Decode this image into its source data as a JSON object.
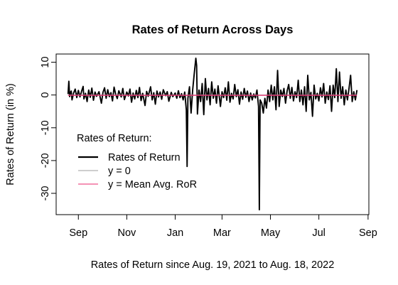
{
  "chart_data": {
    "type": "line",
    "title": "Rates of Return Across Days",
    "xlabel": "Rates of Return since Aug. 19, 2021 to Aug. 18, 2022",
    "ylabel": "Rates of Return (in %)",
    "x_range": [
      "2021-08-19",
      "2022-08-18"
    ],
    "xlim": [
      "2021-08-04",
      "2022-09-02"
    ],
    "ylim": [
      -36.5,
      12.5
    ],
    "x_ticks": [
      {
        "label": "Sep",
        "date": "2021-09-01"
      },
      {
        "label": "Nov",
        "date": "2021-11-01"
      },
      {
        "label": "Jan",
        "date": "2022-01-01"
      },
      {
        "label": "Mar",
        "date": "2022-03-01"
      },
      {
        "label": "May",
        "date": "2022-05-01"
      },
      {
        "label": "Jul",
        "date": "2022-07-01"
      },
      {
        "label": "Sep",
        "date": "2022-09-01"
      }
    ],
    "y_ticks": [
      10,
      0,
      -10,
      -20,
      -30
    ],
    "legend": {
      "title": "Rates of Return:",
      "position": "bottom-left",
      "entries": [
        {
          "label": "Rates of Return",
          "color": "#000000"
        },
        {
          "label": "y = 0",
          "color": "#9e9e9e"
        },
        {
          "label": "y = Mean Avg. RoR",
          "color": "#e8276b"
        }
      ]
    },
    "mean_ror": -0.1,
    "series": [
      {
        "name": "Rates of Return",
        "color": "#000000",
        "points": [
          [
            "2021-08-19",
            0.3
          ],
          [
            "2021-08-20",
            4.2
          ],
          [
            "2021-08-21",
            -0.5
          ],
          [
            "2021-08-22",
            0.8
          ],
          [
            "2021-08-23",
            1.2
          ],
          [
            "2021-08-24",
            -1.5
          ],
          [
            "2021-08-26",
            0.6
          ],
          [
            "2021-08-28",
            1.8
          ],
          [
            "2021-08-30",
            -0.8
          ],
          [
            "2021-09-01",
            1.4
          ],
          [
            "2021-09-03",
            -0.6
          ],
          [
            "2021-09-05",
            1.1
          ],
          [
            "2021-09-07",
            2.6
          ],
          [
            "2021-09-08",
            -1.2
          ],
          [
            "2021-09-10",
            0.5
          ],
          [
            "2021-09-12",
            -2.0
          ],
          [
            "2021-09-14",
            1.5
          ],
          [
            "2021-09-16",
            -0.7
          ],
          [
            "2021-09-18",
            2.1
          ],
          [
            "2021-09-20",
            -1.6
          ],
          [
            "2021-09-22",
            0.9
          ],
          [
            "2021-09-24",
            -0.4
          ],
          [
            "2021-09-27",
            1.0
          ],
          [
            "2021-09-30",
            -2.5
          ],
          [
            "2021-10-02",
            0.8
          ],
          [
            "2021-10-04",
            2.2
          ],
          [
            "2021-10-06",
            -1.0
          ],
          [
            "2021-10-08",
            1.6
          ],
          [
            "2021-10-10",
            -0.5
          ],
          [
            "2021-10-12",
            0.7
          ],
          [
            "2021-10-14",
            -1.8
          ],
          [
            "2021-10-16",
            2.4
          ],
          [
            "2021-10-18",
            0.2
          ],
          [
            "2021-10-20",
            -1.1
          ],
          [
            "2021-10-22",
            1.3
          ],
          [
            "2021-10-25",
            -0.6
          ],
          [
            "2021-10-27",
            2.0
          ],
          [
            "2021-10-29",
            -1.4
          ],
          [
            "2021-11-01",
            0.9
          ],
          [
            "2021-11-03",
            -0.3
          ],
          [
            "2021-11-05",
            1.8
          ],
          [
            "2021-11-07",
            -2.2
          ],
          [
            "2021-11-09",
            0.6
          ],
          [
            "2021-11-11",
            -1.2
          ],
          [
            "2021-11-13",
            1.4
          ],
          [
            "2021-11-15",
            -0.8
          ],
          [
            "2021-11-17",
            2.3
          ],
          [
            "2021-11-19",
            -1.7
          ],
          [
            "2021-11-21",
            0.5
          ],
          [
            "2021-11-24",
            -3.2
          ],
          [
            "2021-11-26",
            1.1
          ],
          [
            "2021-11-28",
            -0.4
          ],
          [
            "2021-12-01",
            2.5
          ],
          [
            "2021-12-03",
            -1.5
          ],
          [
            "2021-12-05",
            0.7
          ],
          [
            "2021-12-07",
            -2.8
          ],
          [
            "2021-12-09",
            1.2
          ],
          [
            "2021-12-11",
            -0.6
          ],
          [
            "2021-12-13",
            0.9
          ],
          [
            "2021-12-15",
            -1.3
          ],
          [
            "2021-12-17",
            1.6
          ],
          [
            "2021-12-20",
            -0.2
          ],
          [
            "2021-12-22",
            1.0
          ],
          [
            "2021-12-24",
            -1.9
          ],
          [
            "2021-12-27",
            0.8
          ],
          [
            "2021-12-29",
            -0.5
          ],
          [
            "2022-01-01",
            0.6
          ],
          [
            "2022-01-03",
            -1.0
          ],
          [
            "2022-01-05",
            1.3
          ],
          [
            "2022-01-07",
            -0.8
          ],
          [
            "2022-01-09",
            0.4
          ],
          [
            "2022-01-11",
            -1.5
          ],
          [
            "2022-01-13",
            0.9
          ],
          [
            "2022-01-15",
            -4.5
          ],
          [
            "2022-01-16",
            -21.8
          ],
          [
            "2022-01-17",
            -1.0
          ],
          [
            "2022-01-19",
            2.5
          ],
          [
            "2022-01-21",
            -5.5
          ],
          [
            "2022-01-23",
            1.5
          ],
          [
            "2022-01-25",
            6.5
          ],
          [
            "2022-01-27",
            11.2
          ],
          [
            "2022-01-28",
            9.0
          ],
          [
            "2022-01-29",
            -5.8
          ],
          [
            "2022-01-31",
            1.5
          ],
          [
            "2022-02-02",
            -2.0
          ],
          [
            "2022-02-04",
            3.5
          ],
          [
            "2022-02-06",
            -6.0
          ],
          [
            "2022-02-08",
            5.0
          ],
          [
            "2022-02-10",
            -1.5
          ],
          [
            "2022-02-12",
            2.0
          ],
          [
            "2022-02-14",
            -3.0
          ],
          [
            "2022-02-16",
            4.0
          ],
          [
            "2022-02-18",
            -1.0
          ],
          [
            "2022-02-20",
            1.8
          ],
          [
            "2022-02-22",
            -2.5
          ],
          [
            "2022-02-24",
            2.8
          ],
          [
            "2022-02-27",
            -3.5
          ],
          [
            "2022-03-01",
            1.0
          ],
          [
            "2022-03-03",
            -0.8
          ],
          [
            "2022-03-05",
            2.2
          ],
          [
            "2022-03-07",
            -1.6
          ],
          [
            "2022-03-09",
            4.0
          ],
          [
            "2022-03-11",
            -2.2
          ],
          [
            "2022-03-13",
            0.5
          ],
          [
            "2022-03-15",
            -1.2
          ],
          [
            "2022-03-17",
            3.2
          ],
          [
            "2022-03-19",
            -0.5
          ],
          [
            "2022-03-21",
            1.6
          ],
          [
            "2022-03-23",
            -2.8
          ],
          [
            "2022-03-25",
            0.9
          ],
          [
            "2022-03-27",
            -1.3
          ],
          [
            "2022-03-29",
            2.0
          ],
          [
            "2022-03-31",
            -0.7
          ],
          [
            "2022-04-02",
            1.2
          ],
          [
            "2022-04-04",
            -2.0
          ],
          [
            "2022-04-06",
            0.6
          ],
          [
            "2022-04-08",
            -1.5
          ],
          [
            "2022-04-10",
            0.3
          ],
          [
            "2022-04-12",
            -0.9
          ],
          [
            "2022-04-14",
            1.5
          ],
          [
            "2022-04-16",
            -3.5
          ],
          [
            "2022-04-17",
            -35.0
          ],
          [
            "2022-04-18",
            -1.5
          ],
          [
            "2022-04-20",
            -2.5
          ],
          [
            "2022-04-22",
            -5.5
          ],
          [
            "2022-04-24",
            -1.0
          ],
          [
            "2022-04-26",
            -4.0
          ],
          [
            "2022-04-28",
            1.5
          ],
          [
            "2022-04-30",
            -2.0
          ],
          [
            "2022-05-02",
            3.0
          ],
          [
            "2022-05-04",
            -1.5
          ],
          [
            "2022-05-06",
            2.5
          ],
          [
            "2022-05-08",
            -4.5
          ],
          [
            "2022-05-10",
            7.5
          ],
          [
            "2022-05-12",
            -3.5
          ],
          [
            "2022-05-14",
            1.5
          ],
          [
            "2022-05-16",
            -0.5
          ],
          [
            "2022-05-18",
            2.0
          ],
          [
            "2022-05-20",
            -2.5
          ],
          [
            "2022-05-22",
            1.2
          ],
          [
            "2022-05-24",
            3.2
          ],
          [
            "2022-05-26",
            -1.0
          ],
          [
            "2022-05-28",
            2.3
          ],
          [
            "2022-05-30",
            -1.8
          ],
          [
            "2022-06-01",
            1.0
          ],
          [
            "2022-06-03",
            -0.8
          ],
          [
            "2022-06-05",
            4.5
          ],
          [
            "2022-06-07",
            -2.0
          ],
          [
            "2022-06-09",
            1.5
          ],
          [
            "2022-06-11",
            -3.0
          ],
          [
            "2022-06-13",
            2.5
          ],
          [
            "2022-06-15",
            -5.0
          ],
          [
            "2022-06-17",
            6.0
          ],
          [
            "2022-06-19",
            -1.5
          ],
          [
            "2022-06-21",
            0.8
          ],
          [
            "2022-06-23",
            -6.5
          ],
          [
            "2022-06-25",
            3.0
          ],
          [
            "2022-06-27",
            -1.2
          ],
          [
            "2022-06-29",
            0.5
          ],
          [
            "2022-07-01",
            -1.8
          ],
          [
            "2022-07-03",
            2.2
          ],
          [
            "2022-07-05",
            -0.6
          ],
          [
            "2022-07-07",
            3.5
          ],
          [
            "2022-07-09",
            -2.5
          ],
          [
            "2022-07-11",
            0.9
          ],
          [
            "2022-07-13",
            -1.4
          ],
          [
            "2022-07-15",
            2.8
          ],
          [
            "2022-07-17",
            -5.0
          ],
          [
            "2022-07-19",
            3.0
          ],
          [
            "2022-07-21",
            -0.8
          ],
          [
            "2022-07-23",
            8.0
          ],
          [
            "2022-07-25",
            -2.0
          ],
          [
            "2022-07-27",
            7.0
          ],
          [
            "2022-07-29",
            -1.0
          ],
          [
            "2022-07-31",
            2.5
          ],
          [
            "2022-08-02",
            -3.0
          ],
          [
            "2022-08-04",
            1.5
          ],
          [
            "2022-08-06",
            -1.5
          ],
          [
            "2022-08-08",
            2.0
          ],
          [
            "2022-08-10",
            6.0
          ],
          [
            "2022-08-12",
            -2.0
          ],
          [
            "2022-08-14",
            1.0
          ],
          [
            "2022-08-16",
            -1.5
          ],
          [
            "2022-08-18",
            1.5
          ]
        ]
      }
    ]
  }
}
